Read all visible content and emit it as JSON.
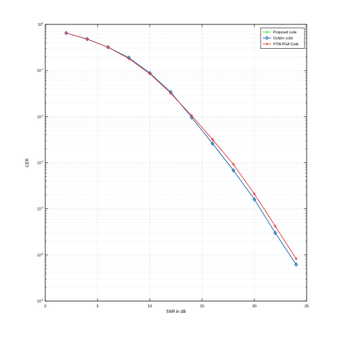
{
  "chart_data": {
    "type": "line",
    "xlabel": "SNR in dB",
    "ylabel": "CER",
    "xlim": [
      0,
      25
    ],
    "ylim_log10": [
      -6,
      0
    ],
    "yscale": "log",
    "grid": true,
    "legend_position": "top-right",
    "x_ticks": [
      "0",
      "5",
      "10",
      "15",
      "20",
      "25"
    ],
    "y_tick_labels": [
      {
        "base": "10",
        "exp": "0"
      },
      {
        "base": "10",
        "exp": "-1"
      },
      {
        "base": "10",
        "exp": "-2"
      },
      {
        "base": "10",
        "exp": "-3"
      },
      {
        "base": "10",
        "exp": "-4"
      },
      {
        "base": "10",
        "exp": "-5"
      },
      {
        "base": "10",
        "exp": "-6"
      }
    ],
    "x": [
      2,
      4,
      6,
      8,
      10,
      12,
      14,
      16,
      18,
      20,
      22,
      24
    ],
    "series": [
      {
        "name": "Proposed code",
        "color": "#33dd33",
        "marker": "plus",
        "values": [
          0.65,
          0.48,
          0.32,
          0.19,
          0.088,
          0.034,
          0.0096,
          0.0026,
          0.00068,
          0.00016,
          3e-05,
          6.2e-06
        ]
      },
      {
        "name": "Golden code",
        "color": "#3366cc",
        "marker": "diamond",
        "values": [
          0.65,
          0.48,
          0.32,
          0.19,
          0.088,
          0.034,
          0.0096,
          0.0026,
          0.00068,
          0.00016,
          3e-05,
          6.2e-06
        ]
      },
      {
        "name": "HTW-PGA Code",
        "color": "#dd3333",
        "marker": "plus",
        "values": [
          0.65,
          0.48,
          0.32,
          0.18,
          0.085,
          0.032,
          0.0105,
          0.0032,
          0.00092,
          0.00021,
          4.2e-05,
          8.2e-06
        ]
      }
    ]
  }
}
